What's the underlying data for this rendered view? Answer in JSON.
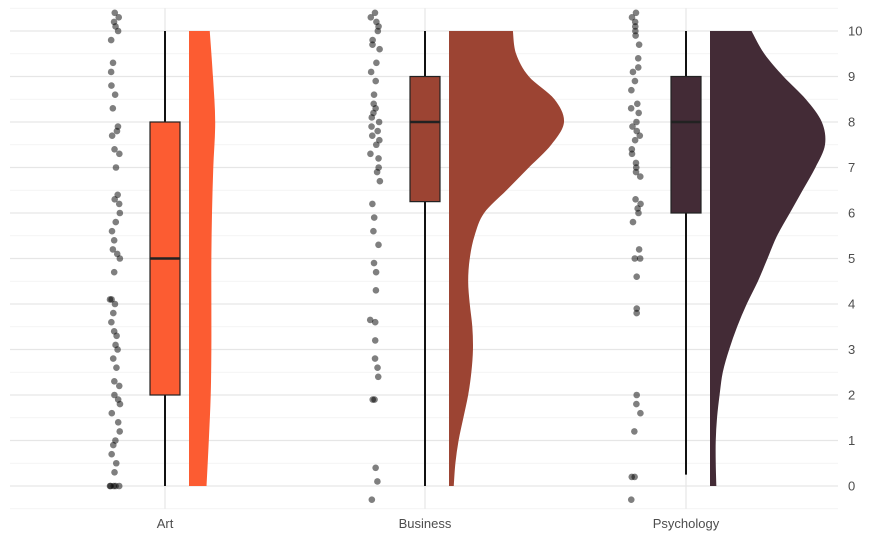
{
  "chart_data": {
    "type": "raincloud",
    "title": "",
    "xlabel": "",
    "ylabel": "",
    "ylim": [
      -0.5,
      10.5
    ],
    "y_ticks": [
      0,
      1,
      2,
      3,
      4,
      5,
      6,
      7,
      8,
      9,
      10
    ],
    "y_axis_position": "right",
    "grid": true,
    "legend": "none",
    "categories": [
      "Art",
      "Business",
      "Psychology"
    ],
    "series": [
      {
        "category": "Art",
        "color": "#fc5c32",
        "box": {
          "min": 0,
          "q1": 2,
          "median": 5,
          "q3": 8,
          "max": 10
        },
        "density": [
          [
            0,
            0.55
          ],
          [
            1,
            0.62
          ],
          [
            2,
            0.68
          ],
          [
            3,
            0.7
          ],
          [
            4,
            0.7
          ],
          [
            5,
            0.7
          ],
          [
            6,
            0.72
          ],
          [
            7,
            0.76
          ],
          [
            8,
            0.82
          ],
          [
            9,
            0.75
          ],
          [
            10,
            0.65
          ]
        ],
        "points": [
          0,
          0,
          0,
          0,
          0,
          0.3,
          0.5,
          0.7,
          0.9,
          1,
          1.2,
          1.4,
          1.6,
          1.8,
          1.9,
          2,
          2.2,
          2.3,
          2.6,
          2.8,
          3,
          3.1,
          3.3,
          3.4,
          3.6,
          3.8,
          4,
          4.1,
          4.1,
          4.7,
          5,
          5.1,
          5.2,
          5.4,
          5.6,
          5.8,
          6,
          6.2,
          6.3,
          6.4,
          7,
          7.3,
          7.4,
          7.7,
          7.8,
          7.9,
          8.3,
          8.6,
          8.8,
          9.1,
          9.3,
          9.8,
          10,
          10.1,
          10.2,
          10.3,
          10.4
        ]
      },
      {
        "category": "Business",
        "color": "#9c4433",
        "box": {
          "min": 0,
          "q1": 6.25,
          "median": 8,
          "q3": 9,
          "max": 10
        },
        "density": [
          [
            0,
            0.15
          ],
          [
            0.5,
            0.2
          ],
          [
            1,
            0.3
          ],
          [
            1.5,
            0.45
          ],
          [
            2,
            0.6
          ],
          [
            2.5,
            0.7
          ],
          [
            3,
            0.75
          ],
          [
            3.5,
            0.73
          ],
          [
            4,
            0.65
          ],
          [
            4.5,
            0.6
          ],
          [
            5,
            0.65
          ],
          [
            5.5,
            0.8
          ],
          [
            6,
            1.1
          ],
          [
            6.5,
            1.8
          ],
          [
            7,
            2.5
          ],
          [
            7.5,
            3.2
          ],
          [
            8,
            3.6
          ],
          [
            8.5,
            3.3
          ],
          [
            9,
            2.5
          ],
          [
            9.5,
            2.1
          ],
          [
            10,
            2.0
          ]
        ],
        "points": [
          -0.3,
          0.1,
          0.4,
          1.9,
          1.9,
          2.4,
          2.6,
          2.8,
          3.2,
          3.6,
          3.65,
          4.3,
          4.7,
          4.9,
          5.3,
          5.6,
          5.9,
          6.2,
          6.7,
          6.9,
          7.0,
          7.2,
          7.3,
          7.5,
          7.6,
          7.7,
          7.8,
          7.9,
          8,
          8.1,
          8.2,
          8.3,
          8.4,
          8.6,
          8.9,
          9.1,
          9.3,
          9.6,
          9.7,
          9.8,
          10,
          10.1,
          10.2,
          10.3,
          10.4
        ]
      },
      {
        "category": "Psychology",
        "color": "#432b36",
        "box": {
          "min": 0.25,
          "q1": 6,
          "median": 8,
          "q3": 9,
          "max": 10
        },
        "density": [
          [
            0,
            0.2
          ],
          [
            0.5,
            0.18
          ],
          [
            1,
            0.18
          ],
          [
            1.5,
            0.22
          ],
          [
            2,
            0.3
          ],
          [
            2.5,
            0.4
          ],
          [
            3,
            0.6
          ],
          [
            3.5,
            0.85
          ],
          [
            4,
            1.15
          ],
          [
            4.5,
            1.5
          ],
          [
            5,
            1.8
          ],
          [
            5.5,
            2.1
          ],
          [
            6,
            2.5
          ],
          [
            6.5,
            2.9
          ],
          [
            7,
            3.3
          ],
          [
            7.5,
            3.6
          ],
          [
            8,
            3.5
          ],
          [
            8.5,
            3.0
          ],
          [
            9,
            2.3
          ],
          [
            9.5,
            1.7
          ],
          [
            10,
            1.3
          ]
        ],
        "points": [
          -0.3,
          0.2,
          0.2,
          1.2,
          1.6,
          1.8,
          2.0,
          3.8,
          3.9,
          4.6,
          5.0,
          5.0,
          5.2,
          5.8,
          6.0,
          6.1,
          6.2,
          6.3,
          6.8,
          6.9,
          7.0,
          7.1,
          7.3,
          7.4,
          7.6,
          7.7,
          7.8,
          7.9,
          8.0,
          8.2,
          8.3,
          8.4,
          8.7,
          8.9,
          9.1,
          9.2,
          9.4,
          9.7,
          9.9,
          10.0,
          10.1,
          10.2,
          10.3,
          10.4
        ]
      }
    ]
  }
}
